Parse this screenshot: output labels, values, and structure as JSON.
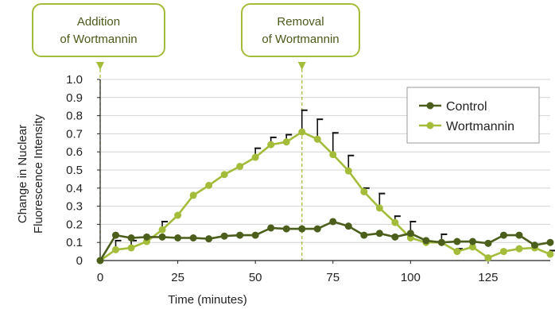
{
  "chart_data": {
    "type": "line",
    "title": "",
    "xlabel": "Time (minutes)",
    "ylabel_lines": [
      "Change in Nuclear",
      "Fluorescence Intensity"
    ],
    "xlim": [
      0,
      145
    ],
    "ylim": [
      0,
      1.0
    ],
    "x_ticks": [
      0,
      25,
      50,
      75,
      100,
      125
    ],
    "y_ticks": [
      0,
      0.1,
      0.2,
      0.3,
      0.4,
      0.5,
      0.6,
      0.7,
      0.8,
      0.9,
      1.0
    ],
    "y_tick_labels": [
      "0",
      "0.1",
      "0.2",
      "0.3",
      "0.4",
      "0.5",
      "0.6",
      "0.7",
      "0.8",
      "0.9",
      "1.0"
    ],
    "grid": "horizontal",
    "legend_position": "top-right",
    "annotations": [
      {
        "lines": [
          "Addition",
          "of Wortmannin"
        ],
        "x": 0
      },
      {
        "lines": [
          "Removal",
          "of Wortmannin"
        ],
        "x": 65
      }
    ],
    "series": [
      {
        "name": "Control",
        "color": "#4b5e1c",
        "points": [
          [
            0,
            0
          ],
          [
            5,
            0.14
          ],
          [
            10,
            0.125
          ],
          [
            15,
            0.13
          ],
          [
            20,
            0.13
          ],
          [
            25,
            0.125
          ],
          [
            30,
            0.125
          ],
          [
            35,
            0.12
          ],
          [
            40,
            0.135
          ],
          [
            45,
            0.14
          ],
          [
            50,
            0.14
          ],
          [
            55,
            0.18
          ],
          [
            60,
            0.175
          ],
          [
            65,
            0.175
          ],
          [
            70,
            0.175
          ],
          [
            75,
            0.215
          ],
          [
            80,
            0.19
          ],
          [
            85,
            0.14
          ],
          [
            90,
            0.15
          ],
          [
            95,
            0.13
          ],
          [
            100,
            0.15
          ],
          [
            105,
            0.11
          ],
          [
            110,
            0.1
          ],
          [
            115,
            0.105
          ],
          [
            120,
            0.105
          ],
          [
            125,
            0.095
          ],
          [
            130,
            0.14
          ],
          [
            135,
            0.14
          ],
          [
            140,
            0.085
          ],
          [
            145,
            0.1
          ]
        ],
        "errors": []
      },
      {
        "name": "Wortmannin",
        "color": "#a3bd3a",
        "points": [
          [
            0,
            0
          ],
          [
            5,
            0.06
          ],
          [
            10,
            0.07
          ],
          [
            15,
            0.105
          ],
          [
            20,
            0.17
          ],
          [
            25,
            0.25
          ],
          [
            30,
            0.36
          ],
          [
            35,
            0.415
          ],
          [
            40,
            0.475
          ],
          [
            45,
            0.52
          ],
          [
            50,
            0.57
          ],
          [
            55,
            0.64
          ],
          [
            60,
            0.655
          ],
          [
            65,
            0.71
          ],
          [
            70,
            0.67
          ],
          [
            75,
            0.585
          ],
          [
            80,
            0.495
          ],
          [
            85,
            0.38
          ],
          [
            90,
            0.29
          ],
          [
            95,
            0.21
          ],
          [
            100,
            0.125
          ],
          [
            105,
            0.1
          ],
          [
            110,
            0.1
          ],
          [
            115,
            0.05
          ],
          [
            120,
            0.075
          ],
          [
            125,
            0.015
          ],
          [
            130,
            0.05
          ],
          [
            135,
            0.065
          ],
          [
            140,
            0.07
          ],
          [
            145,
            0.035
          ]
        ],
        "errors": [
          [
            5,
            0.05
          ],
          [
            10,
            0.04
          ],
          [
            20,
            0.045
          ],
          [
            50,
            0.05
          ],
          [
            55,
            0.04
          ],
          [
            60,
            0.04
          ],
          [
            65,
            0.12
          ],
          [
            70,
            0.11
          ],
          [
            75,
            0.12
          ],
          [
            80,
            0.085
          ],
          [
            85,
            0.02
          ],
          [
            90,
            0.08
          ],
          [
            95,
            0.035
          ],
          [
            100,
            0.09
          ],
          [
            110,
            0.045
          ],
          [
            115,
            0.015
          ],
          [
            145,
            0.02
          ]
        ]
      }
    ]
  }
}
